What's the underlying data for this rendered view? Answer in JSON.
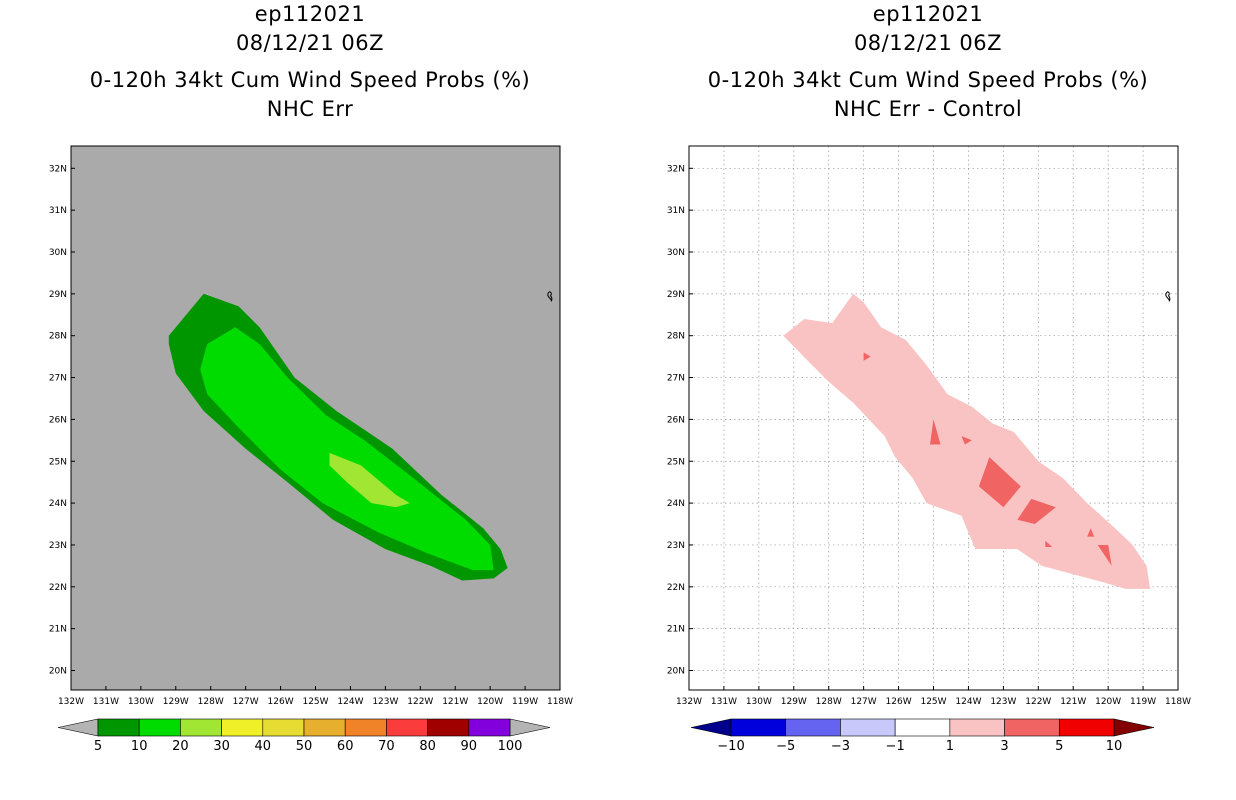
{
  "chart_data": [
    {
      "type": "filled-contour-map",
      "storm_id": "ep112021",
      "datetime": "08/12/21 06Z",
      "title": "0-120h 34kt Cum Wind Speed Probs (%)",
      "subtitle": "NHC Err",
      "x_ticks": [
        "132W",
        "131W",
        "130W",
        "129W",
        "128W",
        "127W",
        "126W",
        "125W",
        "124W",
        "123W",
        "122W",
        "121W",
        "120W",
        "119W",
        "118W"
      ],
      "y_ticks": [
        "20N",
        "21N",
        "22N",
        "23N",
        "24N",
        "25N",
        "26N",
        "27N",
        "28N",
        "29N",
        "30N",
        "31N",
        "32N"
      ],
      "lon_range": [
        -132,
        -118
      ],
      "lat_range": [
        19.6,
        32.5
      ],
      "colorbar": {
        "labels": [
          "5",
          "10",
          "20",
          "30",
          "40",
          "50",
          "60",
          "70",
          "80",
          "90",
          "100"
        ],
        "colors": [
          "#009600",
          "#00dc00",
          "#a0e632",
          "#f0f028",
          "#e6dc32",
          "#e6af2d",
          "#f08228",
          "#fa3c3c",
          "#a00000",
          "#8200dc"
        ],
        "under_color": "#b4b4b4",
        "over_color": "#b4b4b4"
      },
      "contours": [
        {
          "level": "5-10",
          "color": "#009600",
          "lonlat": [
            [
              -129.2,
              28.0
            ],
            [
              -128.2,
              29.0
            ],
            [
              -127.2,
              28.7
            ],
            [
              -126.6,
              28.2
            ],
            [
              -125.6,
              27.0
            ],
            [
              -124.4,
              26.2
            ],
            [
              -122.8,
              25.3
            ],
            [
              -121.4,
              24.2
            ],
            [
              -120.2,
              23.4
            ],
            [
              -119.7,
              22.9
            ],
            [
              -119.5,
              22.45
            ],
            [
              -119.9,
              22.2
            ],
            [
              -120.8,
              22.15
            ],
            [
              -121.7,
              22.5
            ],
            [
              -123.0,
              22.9
            ],
            [
              -124.5,
              23.6
            ],
            [
              -125.8,
              24.5
            ],
            [
              -127.0,
              25.3
            ],
            [
              -128.2,
              26.2
            ],
            [
              -129.0,
              27.1
            ],
            [
              -129.2,
              27.8
            ]
          ]
        },
        {
          "level": "10-20",
          "color": "#00dc00",
          "lonlat": [
            [
              -128.3,
              27.2
            ],
            [
              -128.1,
              27.8
            ],
            [
              -127.3,
              28.2
            ],
            [
              -126.6,
              27.8
            ],
            [
              -125.8,
              27.0
            ],
            [
              -124.7,
              26.1
            ],
            [
              -123.6,
              25.5
            ],
            [
              -122.2,
              24.6
            ],
            [
              -120.7,
              23.6
            ],
            [
              -120.0,
              23.0
            ],
            [
              -119.9,
              22.4
            ],
            [
              -120.5,
              22.4
            ],
            [
              -121.8,
              22.8
            ],
            [
              -123.2,
              23.3
            ],
            [
              -124.8,
              24.0
            ],
            [
              -126.0,
              24.8
            ],
            [
              -127.2,
              25.8
            ],
            [
              -128.1,
              26.6
            ]
          ]
        },
        {
          "level": "20-30",
          "color": "#a0e632",
          "lonlat": [
            [
              -124.6,
              25.2
            ],
            [
              -123.7,
              24.9
            ],
            [
              -122.7,
              24.2
            ],
            [
              -122.3,
              24.0
            ],
            [
              -122.7,
              23.9
            ],
            [
              -123.4,
              24.0
            ],
            [
              -124.1,
              24.5
            ],
            [
              -124.6,
              24.9
            ]
          ]
        }
      ]
    },
    {
      "type": "filled-contour-map",
      "storm_id": "ep112021",
      "datetime": "08/12/21 06Z",
      "title": "0-120h 34kt Cum Wind Speed Probs (%)",
      "subtitle": "NHC Err - Control",
      "x_ticks": [
        "132W",
        "131W",
        "130W",
        "129W",
        "128W",
        "127W",
        "126W",
        "125W",
        "124W",
        "123W",
        "122W",
        "121W",
        "120W",
        "119W",
        "118W"
      ],
      "y_ticks": [
        "20N",
        "21N",
        "22N",
        "23N",
        "24N",
        "25N",
        "26N",
        "27N",
        "28N",
        "29N",
        "30N",
        "31N",
        "32N"
      ],
      "lon_range": [
        -132,
        -118
      ],
      "lat_range": [
        19.6,
        32.5
      ],
      "grid": true,
      "colorbar": {
        "labels": [
          "-10",
          "-5",
          "-3",
          "-1",
          "1",
          "3",
          "5",
          "10"
        ],
        "colors": [
          "#0000dc",
          "#6464f0",
          "#c8c8fa",
          "#ffffff",
          "#fac3c3",
          "#f06464",
          "#f00000"
        ],
        "under_color": "#00008c",
        "over_color": "#820000"
      },
      "contours": [
        {
          "level": "1-3",
          "color": "#fac3c3",
          "lonlat": [
            [
              -129.3,
              28.0
            ],
            [
              -128.7,
              28.4
            ],
            [
              -127.9,
              28.3
            ],
            [
              -127.3,
              29.0
            ],
            [
              -127.0,
              28.8
            ],
            [
              -126.5,
              28.2
            ],
            [
              -125.8,
              27.9
            ],
            [
              -125.2,
              27.3
            ],
            [
              -124.6,
              26.6
            ],
            [
              -123.9,
              26.3
            ],
            [
              -123.3,
              25.9
            ],
            [
              -122.7,
              25.7
            ],
            [
              -122.0,
              25.0
            ],
            [
              -121.3,
              24.6
            ],
            [
              -120.6,
              24.0
            ],
            [
              -119.8,
              23.4
            ],
            [
              -119.3,
              23.0
            ],
            [
              -118.9,
              22.5
            ],
            [
              -118.8,
              21.95
            ],
            [
              -119.5,
              21.95
            ],
            [
              -120.1,
              22.1
            ],
            [
              -121.0,
              22.3
            ],
            [
              -121.9,
              22.5
            ],
            [
              -122.6,
              22.9
            ],
            [
              -123.8,
              22.9
            ],
            [
              -124.2,
              23.7
            ],
            [
              -125.2,
              24.0
            ],
            [
              -125.6,
              24.6
            ],
            [
              -126.1,
              25.1
            ],
            [
              -126.4,
              25.6
            ],
            [
              -127.3,
              26.4
            ],
            [
              -128.0,
              26.9
            ],
            [
              -128.6,
              27.4
            ]
          ]
        },
        {
          "level": "3-5",
          "color": "#f06464",
          "lonlat": [
            [
              -127.0,
              27.6
            ],
            [
              -126.8,
              27.5
            ],
            [
              -127.0,
              27.4
            ]
          ]
        },
        {
          "level": "3-5",
          "color": "#f06464",
          "lonlat": [
            [
              -125.0,
              26.0
            ],
            [
              -124.8,
              25.4
            ],
            [
              -125.1,
              25.4
            ]
          ]
        },
        {
          "level": "3-5",
          "color": "#f06464",
          "lonlat": [
            [
              -124.2,
              25.6
            ],
            [
              -123.9,
              25.5
            ],
            [
              -124.1,
              25.4
            ]
          ]
        },
        {
          "level": "3-5",
          "color": "#f06464",
          "lonlat": [
            [
              -123.4,
              25.1
            ],
            [
              -122.5,
              24.4
            ],
            [
              -123.0,
              23.9
            ],
            [
              -123.7,
              24.4
            ]
          ]
        },
        {
          "level": "3-5",
          "color": "#f06464",
          "lonlat": [
            [
              -122.2,
              24.1
            ],
            [
              -121.5,
              23.9
            ],
            [
              -122.1,
              23.5
            ],
            [
              -122.6,
              23.6
            ]
          ]
        },
        {
          "level": "3-5",
          "color": "#f06464",
          "lonlat": [
            [
              -120.5,
              23.4
            ],
            [
              -120.4,
              23.2
            ],
            [
              -120.6,
              23.2
            ]
          ]
        },
        {
          "level": "3-5",
          "color": "#f06464",
          "lonlat": [
            [
              -121.8,
              23.1
            ],
            [
              -121.6,
              22.95
            ],
            [
              -121.8,
              22.95
            ]
          ]
        },
        {
          "level": "3-5",
          "color": "#f06464",
          "lonlat": [
            [
              -120.3,
              23.0
            ],
            [
              -119.9,
              22.5
            ],
            [
              -120.0,
              23.0
            ]
          ]
        }
      ]
    }
  ]
}
